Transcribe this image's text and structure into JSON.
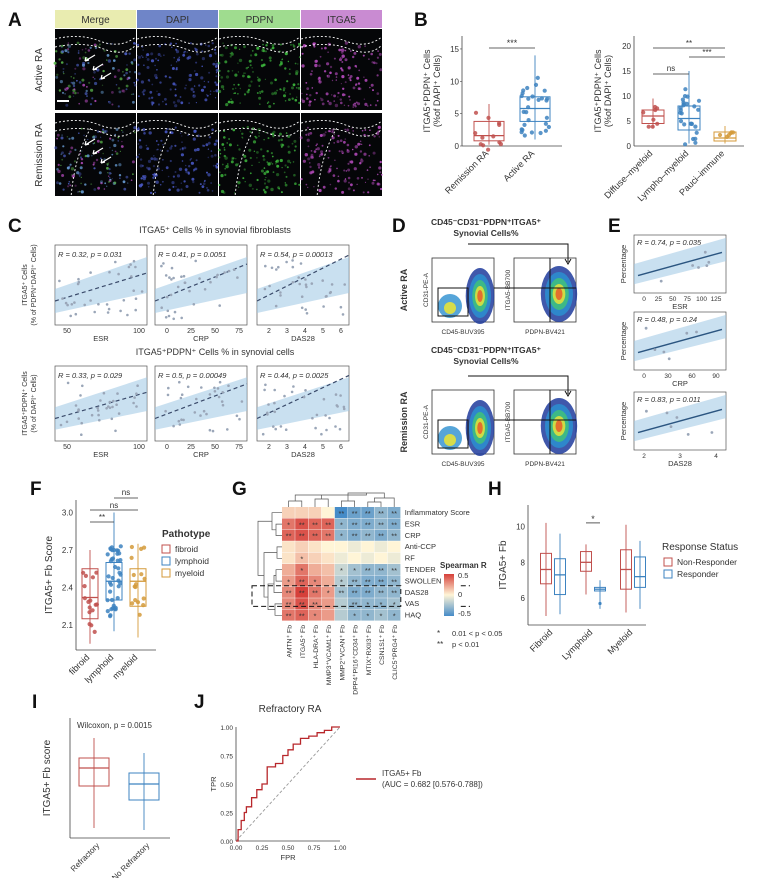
{
  "panels": {
    "A": {
      "letter": "A",
      "channels": [
        "Merge",
        "DAPI",
        "PDPN",
        "ITGA5"
      ],
      "channel_colors": [
        "#e9ecb0",
        "#6f85c8",
        "#9fdc8f",
        "#c98bd2"
      ],
      "rows": [
        "Active RA",
        "Remission RA"
      ]
    },
    "B": {
      "letter": "B",
      "left": {
        "ylabel": [
          "ITGA5⁺PDPN⁺ Cells",
          "(%of DAPI⁺ Cells)"
        ],
        "categories": [
          "Remission RA",
          "Active RA"
        ],
        "yticks": [
          "0",
          "5",
          "10",
          "15"
        ],
        "sig": "***"
      },
      "right": {
        "ylabel": [
          "ITGA5⁺PDPN⁺ Cells",
          "(%of DAPI⁺ Cells)"
        ],
        "categories": [
          "Diffuse–myeloid",
          "Lympho–myeloid",
          "Pauci–immune"
        ],
        "yticks": [
          "0",
          "5",
          "10",
          "15",
          "20"
        ],
        "sig": [
          "ns",
          "**",
          "***"
        ]
      }
    },
    "C": {
      "letter": "C",
      "top_title": "ITGA5⁺ Cells % in synovial fibroblasts",
      "bottom_title": "ITGA5⁺PDPN⁺ Cells % in synovial cells",
      "top_ylabel": [
        "ITGA5⁺ Cells",
        "(% of PDPN⁺DAPI⁺ Cells)"
      ],
      "bottom_ylabel": [
        "ITGA5⁺PDPN⁺ Cells",
        "(% of DAPI⁺ Cells)"
      ],
      "xlabels": [
        "ESR",
        "CRP",
        "DAS28"
      ],
      "top_stats": [
        "R = 0.32, p = 0.031",
        "R = 0.41, p = 0.0051",
        "R = 0.54, p = 0.00013"
      ],
      "bottom_stats": [
        "R = 0.33, p = 0.029",
        "R = 0.5, p = 0.00049",
        "R = 0.44, p = 0.0025"
      ],
      "xticks": [
        [
          "50",
          "100"
        ],
        [
          "0",
          "25",
          "50",
          "75"
        ],
        [
          "2",
          "3",
          "4",
          "5",
          "6"
        ]
      ]
    },
    "D": {
      "letter": "D",
      "title_top": [
        "CD45⁻CD31⁻PDPN⁺ITGA5⁺",
        "Synovial Cells%"
      ],
      "title_bottom": [
        "CD45⁻CD31⁻PDPN⁺ITGA5⁺",
        "Synovial Cells%"
      ],
      "rows": [
        "Active RA",
        "Remission RA"
      ],
      "axes": {
        "left_x": "CD45-BUV395",
        "left_y": "CD31-PE-A",
        "right_x": "PDPN-BV421",
        "right_y": "ITGA5-BB700"
      }
    },
    "E": {
      "letter": "E",
      "ylabel": "Percentage",
      "stats": [
        "R = 0.74, p = 0.035",
        "R = 0.48, p = 0.24",
        "R = 0.83, p = 0.011"
      ],
      "xlabels": [
        "ESR",
        "CRP",
        "DAS28"
      ],
      "xticks": [
        [
          "0",
          "25",
          "50",
          "75",
          "100",
          "125"
        ],
        [
          "0",
          "30",
          "60",
          "90"
        ],
        [
          "2",
          "3",
          "4"
        ]
      ]
    },
    "F": {
      "letter": "F",
      "ylabel": "ITGA5+ Fb Score",
      "categories": [
        "fibroid",
        "lymphoid",
        "myeloid"
      ],
      "yticks": [
        "2.1",
        "2.4",
        "2.7",
        "3.0"
      ],
      "legend_title": "Pathotype",
      "legend": [
        "fibroid",
        "lymphoid",
        "myeloid"
      ],
      "colors": [
        "#c0504d",
        "#3d83c0",
        "#d49a3a"
      ],
      "sig": [
        "**",
        "ns",
        "ns"
      ]
    },
    "G": {
      "letter": "G",
      "rows": [
        "Inflammatory Score",
        "ESR",
        "CRP",
        "Anti-CCP",
        "RF",
        "TENDER",
        "SWOLLEN",
        "DAS28",
        "VAS",
        "HAQ"
      ],
      "cols": [
        "AMTN⁺ Fb",
        "ITGA5⁺ Fb",
        "HLA-DRA⁺ Fb",
        "MMP3⁺VCAM1⁺ Fb",
        "MMP2⁺VCAN⁺ Fb",
        "DPP4⁺PI16⁺CD34⁺ Fb",
        "MTIX⁺RXII3⁺ Fb",
        "CSN1S1⁺ Fb",
        "CLIC5⁺PRG4⁺ Fb"
      ],
      "values": [
        [
          0.1,
          0.1,
          0.1,
          0.0,
          -0.5,
          -0.4,
          -0.4,
          -0.3,
          -0.35
        ],
        [
          0.35,
          0.45,
          0.4,
          0.4,
          -0.3,
          -0.35,
          -0.35,
          -0.3,
          -0.35
        ],
        [
          0.4,
          0.45,
          0.4,
          0.35,
          -0.3,
          -0.35,
          -0.3,
          -0.35,
          -0.3
        ],
        [
          0.05,
          0.1,
          0.05,
          0.0,
          0.0,
          -0.05,
          0.0,
          -0.05,
          0.0
        ],
        [
          0.05,
          0.15,
          0.1,
          0.05,
          -0.05,
          0.0,
          -0.05,
          0.0,
          -0.05
        ],
        [
          0.2,
          0.35,
          0.2,
          0.15,
          -0.15,
          -0.25,
          -0.3,
          -0.3,
          -0.25
        ],
        [
          0.25,
          0.4,
          0.3,
          0.2,
          -0.2,
          -0.3,
          -0.35,
          -0.35,
          -0.3
        ],
        [
          0.3,
          0.5,
          0.35,
          0.25,
          -0.25,
          -0.35,
          -0.35,
          -0.3,
          -0.3
        ],
        [
          0.3,
          0.45,
          0.3,
          0.25,
          -0.2,
          -0.3,
          -0.3,
          -0.3,
          -0.25
        ],
        [
          0.35,
          0.4,
          0.3,
          0.25,
          -0.2,
          -0.3,
          -0.3,
          -0.25,
          -0.3
        ]
      ],
      "stars": [
        [
          "",
          "",
          "",
          "",
          "**",
          "**",
          "**",
          "**",
          "**"
        ],
        [
          "*",
          "**",
          "**",
          "**",
          "*",
          "**",
          "**",
          "**",
          "**"
        ],
        [
          "**",
          "**",
          "**",
          "**",
          "*",
          "**",
          "**",
          "**",
          "**"
        ],
        [
          "",
          "",
          "",
          "",
          "",
          "",
          "",
          "",
          ""
        ],
        [
          "",
          "*",
          "",
          "",
          "",
          "",
          "",
          "",
          ""
        ],
        [
          "",
          "*",
          "",
          "",
          "*",
          "*",
          "**",
          "**",
          "**"
        ],
        [
          "*",
          "**",
          "*",
          "",
          "*",
          "**",
          "**",
          "**",
          "**"
        ],
        [
          "**",
          "**",
          "**",
          "*",
          "**",
          "**",
          "**",
          "**",
          "**"
        ],
        [
          "**",
          "**",
          "**",
          "",
          "",
          "**",
          "*",
          "*",
          "*"
        ],
        [
          "**",
          "**",
          "*",
          "",
          "",
          "*",
          "*",
          "*",
          "*"
        ]
      ],
      "legend_title": "Spearman R",
      "legend_ticks": [
        "0.5",
        "0",
        "-0.5"
      ],
      "sig_legend": [
        [
          "*",
          "0.01 < p < 0.05"
        ],
        [
          "**",
          "p < 0.01"
        ]
      ]
    },
    "H": {
      "letter": "H",
      "ylabel": "ITGA5+ Fb",
      "categories": [
        "Fibroid",
        "Lymphoid",
        "Myeloid"
      ],
      "yticks": [
        "6",
        "8",
        "10"
      ],
      "legend_title": "Response Status",
      "legend": [
        "Non-Responder",
        "Responder"
      ],
      "colors": [
        "#c0504d",
        "#3d83c0"
      ],
      "sig": "*"
    },
    "I": {
      "letter": "I",
      "note": "Wilcoxon, p = 0.0015",
      "ylabel": "ITGA5+ Fb score",
      "categories": [
        "Refractory",
        "No Refractory"
      ]
    },
    "J": {
      "letter": "J",
      "title": "Refractory RA",
      "xlabel": "FPR",
      "ylabel": "TPR",
      "ticks": [
        "0.00",
        "0.25",
        "0.50",
        "0.75",
        "1.00"
      ],
      "legend": [
        "ITGA5+ Fb",
        "(AUC = 0.682 [0.576-0.788])"
      ]
    }
  },
  "chart_data": [
    {
      "type": "scatter",
      "panel": "B-left",
      "categories": [
        "Remission RA",
        "Active RA"
      ],
      "series": [
        {
          "values_median": [
            1.6,
            5.8
          ]
        }
      ],
      "ylim": [
        0,
        17
      ]
    },
    {
      "type": "scatter",
      "panel": "B-right",
      "categories": [
        "Diffuse–myeloid",
        "Lympho–myeloid",
        "Pauci–immune"
      ],
      "series": [
        {
          "values_median": [
            6,
            5.5,
            1.6
          ]
        }
      ],
      "ylim": [
        0,
        22
      ]
    },
    {
      "type": "line",
      "panel": "J",
      "x": [
        0,
        0.02,
        0.05,
        0.08,
        0.1,
        0.15,
        0.2,
        0.25,
        0.3,
        0.38,
        0.45,
        0.5,
        0.55,
        0.62,
        0.7,
        0.78,
        0.85,
        0.92,
        1.0
      ],
      "y": [
        0,
        0.1,
        0.18,
        0.25,
        0.3,
        0.38,
        0.45,
        0.5,
        0.65,
        0.68,
        0.75,
        0.8,
        0.85,
        0.9,
        0.92,
        0.95,
        0.97,
        1.0,
        1.0
      ],
      "xlim": [
        0,
        1
      ],
      "ylim": [
        0,
        1
      ]
    }
  ]
}
